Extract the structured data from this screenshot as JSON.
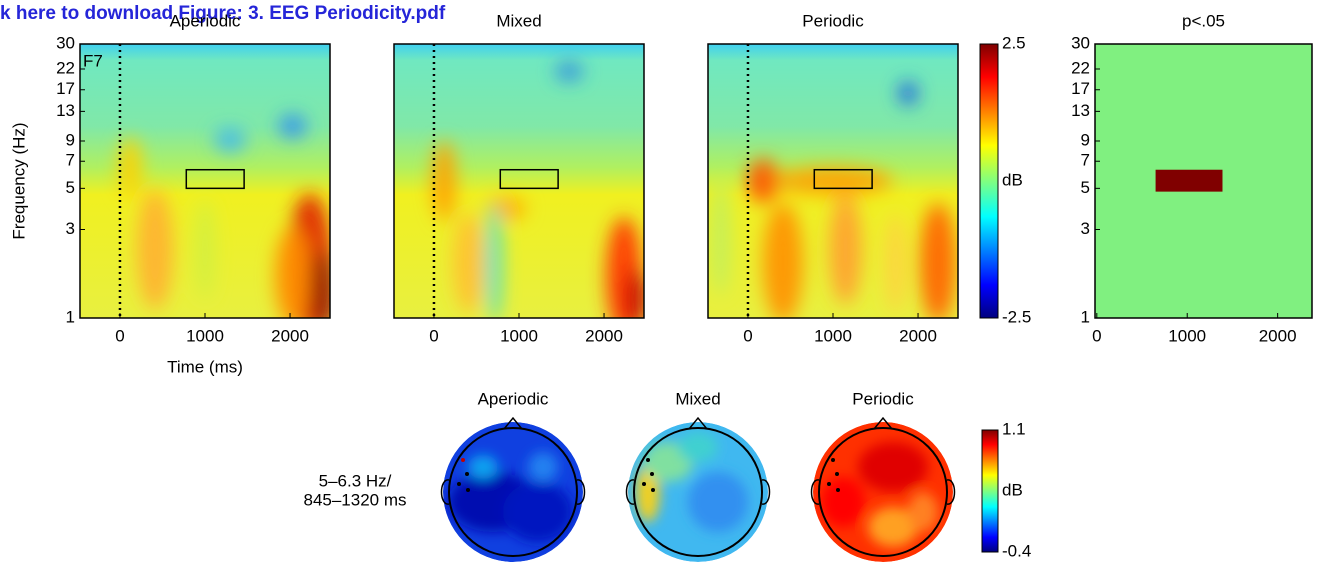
{
  "banner": "k here to download Figure: 3. EEG Periodicity.pdf",
  "spectrograms": {
    "ylabel": "Frequency (Hz)",
    "xlabel": "Time (ms)",
    "channel": "F7",
    "xlim": [
      -470,
      2470
    ],
    "xticks": [
      0,
      1000,
      2000
    ],
    "ylim": [
      1,
      30
    ],
    "yticks": [
      1,
      3,
      5,
      7,
      9,
      13,
      17,
      22,
      30
    ],
    "log_y": true,
    "event_time": 0,
    "window": {
      "time": [
        780,
        1460
      ],
      "freq": [
        5,
        6.3
      ]
    },
    "panels": [
      {
        "title": "Aperiodic"
      },
      {
        "title": "Mixed"
      },
      {
        "title": "Periodic"
      }
    ]
  },
  "colorbar": {
    "label": "dB",
    "lim": [
      -2.5,
      2.5
    ],
    "ticks": [
      2.5,
      -2.5
    ]
  },
  "significance": {
    "title": "p<.05",
    "xlim": [
      -20,
      2380
    ],
    "xticks": [
      0,
      1000,
      2000
    ],
    "yticks": [
      1,
      3,
      5,
      7,
      9,
      13,
      17,
      22,
      30
    ],
    "cluster": {
      "time": [
        650,
        1390
      ],
      "freq": [
        4.8,
        6.3
      ]
    }
  },
  "topo": {
    "label": [
      "5–6.3 Hz/",
      "845–1320 ms"
    ],
    "titles": [
      "Aperiodic",
      "Mixed",
      "Periodic"
    ],
    "colorbar": {
      "label": "dB",
      "lim": [
        -0.4,
        1.1
      ],
      "ticks": [
        1.1,
        -0.4
      ]
    }
  }
}
